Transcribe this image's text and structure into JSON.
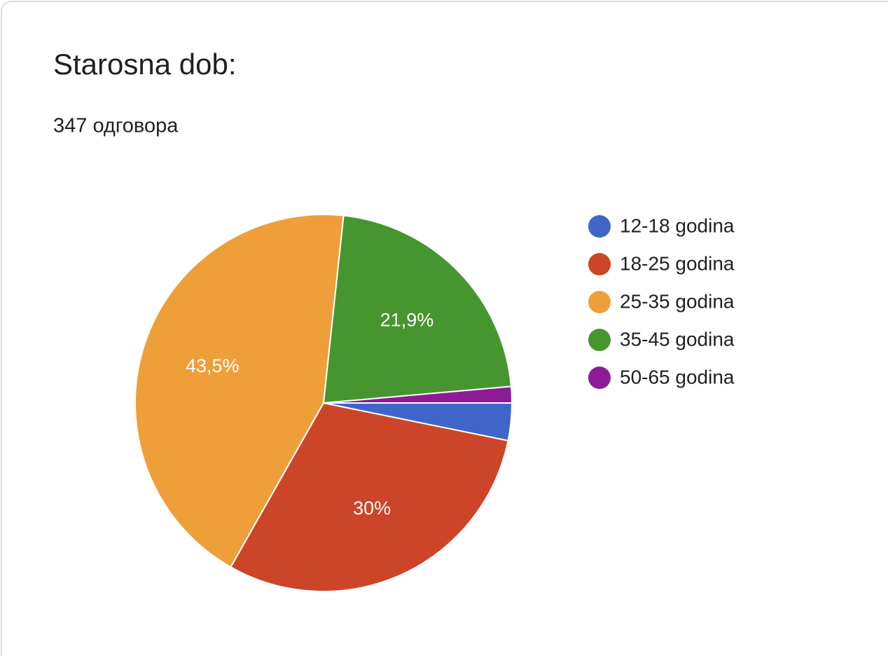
{
  "chart_data": {
    "type": "pie",
    "title": "Starosna dob:",
    "subtitle": "347 одговора",
    "categories": [
      "12-18 godina",
      "18-25 godina",
      "25-35 godina",
      "35-45 godina",
      "50-65 godina"
    ],
    "values": [
      3.2,
      30,
      43.5,
      21.9,
      1.4
    ],
    "value_labels": [
      null,
      "30%",
      "43,5%",
      "21,9%",
      null
    ],
    "colors": [
      "#3f65c8",
      "#cc4528",
      "#ee9f3a",
      "#47952f",
      "#8e1b96"
    ],
    "legend": "right"
  }
}
